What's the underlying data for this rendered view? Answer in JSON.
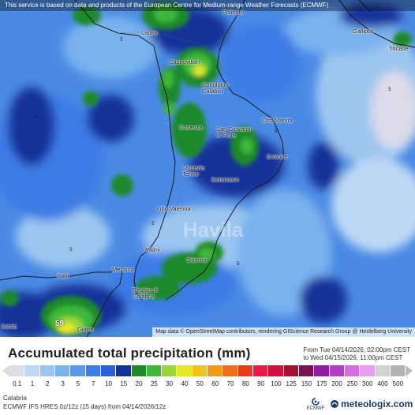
{
  "map": {
    "attribution_top": "This service is based on data and products of the European Centre for Medium-range Weather Forecasts (ECMWF)",
    "attribution_bottom": "Map data © OpenStreetMap contributors, rendering GIScience Research Group @ Heidelberg University",
    "watermark": "Havila",
    "peak_value": "59",
    "cities": [
      {
        "key": "policoro",
        "label": "Policoro"
      },
      {
        "key": "lauria",
        "label": "Lauria"
      },
      {
        "key": "gallipoli",
        "label": "Gallipoli"
      },
      {
        "key": "tricase",
        "label": "Tricase"
      },
      {
        "key": "castrovillari",
        "label": "Castrovillari"
      },
      {
        "key": "corigliano",
        "label": "Corigliano\nCalabro"
      },
      {
        "key": "ciro_marina",
        "label": "Cirò Marina"
      },
      {
        "key": "cosenza",
        "label": "Cosenza"
      },
      {
        "key": "san_giovanni",
        "label": "San Giovanni\nin Fiore"
      },
      {
        "key": "crotone",
        "label": "Crotone"
      },
      {
        "key": "lamezia",
        "label": "Lamezia\nTerme"
      },
      {
        "key": "catanzaro",
        "label": "Catanzaro"
      },
      {
        "key": "vibo",
        "label": "Vibo Valentia"
      },
      {
        "key": "palmi",
        "label": "Palmi"
      },
      {
        "key": "siderno",
        "label": "Siderno"
      },
      {
        "key": "messina",
        "label": "Messina"
      },
      {
        "key": "patti",
        "label": "Patti"
      },
      {
        "key": "reggio",
        "label": "Reggio di\nCalabria"
      },
      {
        "key": "icosia",
        "label": "icosia"
      },
      {
        "key": "giarre",
        "label": "Giarre"
      }
    ]
  },
  "legend": {
    "title": "Accumulated total precipitation (mm)",
    "period_from": "From Tue 04/14/2026, 02:00pm CEST",
    "period_to": "to Wed 04/15/2026, 11:00pm CEST",
    "scale": [
      {
        "value": "0.1",
        "color": "#dcdce8"
      },
      {
        "value": "1",
        "color": "#bcd8f4"
      },
      {
        "value": "2",
        "color": "#9cc6f0"
      },
      {
        "value": "3",
        "color": "#7ab2ee"
      },
      {
        "value": "5",
        "color": "#5898ec"
      },
      {
        "value": "7",
        "color": "#3c7ce6"
      },
      {
        "value": "10",
        "color": "#2a5fd6"
      },
      {
        "value": "15",
        "color": "#15329a"
      },
      {
        "value": "20",
        "color": "#1f8a2a"
      },
      {
        "value": "25",
        "color": "#3cb83a"
      },
      {
        "value": "30",
        "color": "#96d63a"
      },
      {
        "value": "40",
        "color": "#e6e626"
      },
      {
        "value": "50",
        "color": "#f2c21e"
      },
      {
        "value": "60",
        "color": "#f29a1e"
      },
      {
        "value": "70",
        "color": "#ee6e1e"
      },
      {
        "value": "80",
        "color": "#e63c1e"
      },
      {
        "value": "90",
        "color": "#e61e46"
      },
      {
        "value": "100",
        "color": "#c8143c"
      },
      {
        "value": "125",
        "color": "#a01432"
      },
      {
        "value": "150",
        "color": "#7a1050"
      },
      {
        "value": "175",
        "color": "#8c1ea0"
      },
      {
        "value": "200",
        "color": "#b43cc8"
      },
      {
        "value": "250",
        "color": "#d46ee0"
      },
      {
        "value": "300",
        "color": "#e6a0ee"
      },
      {
        "value": "400",
        "color": "#d2d2d2"
      },
      {
        "value": "500",
        "color": "#b4b4b4"
      }
    ],
    "region": "Calabria",
    "model": "ECMWF IFS HRES 0z/12z (15 days) from 04/14/2026/12z",
    "ecmwf_label": "ECMWF",
    "brand": "meteologix.com"
  }
}
